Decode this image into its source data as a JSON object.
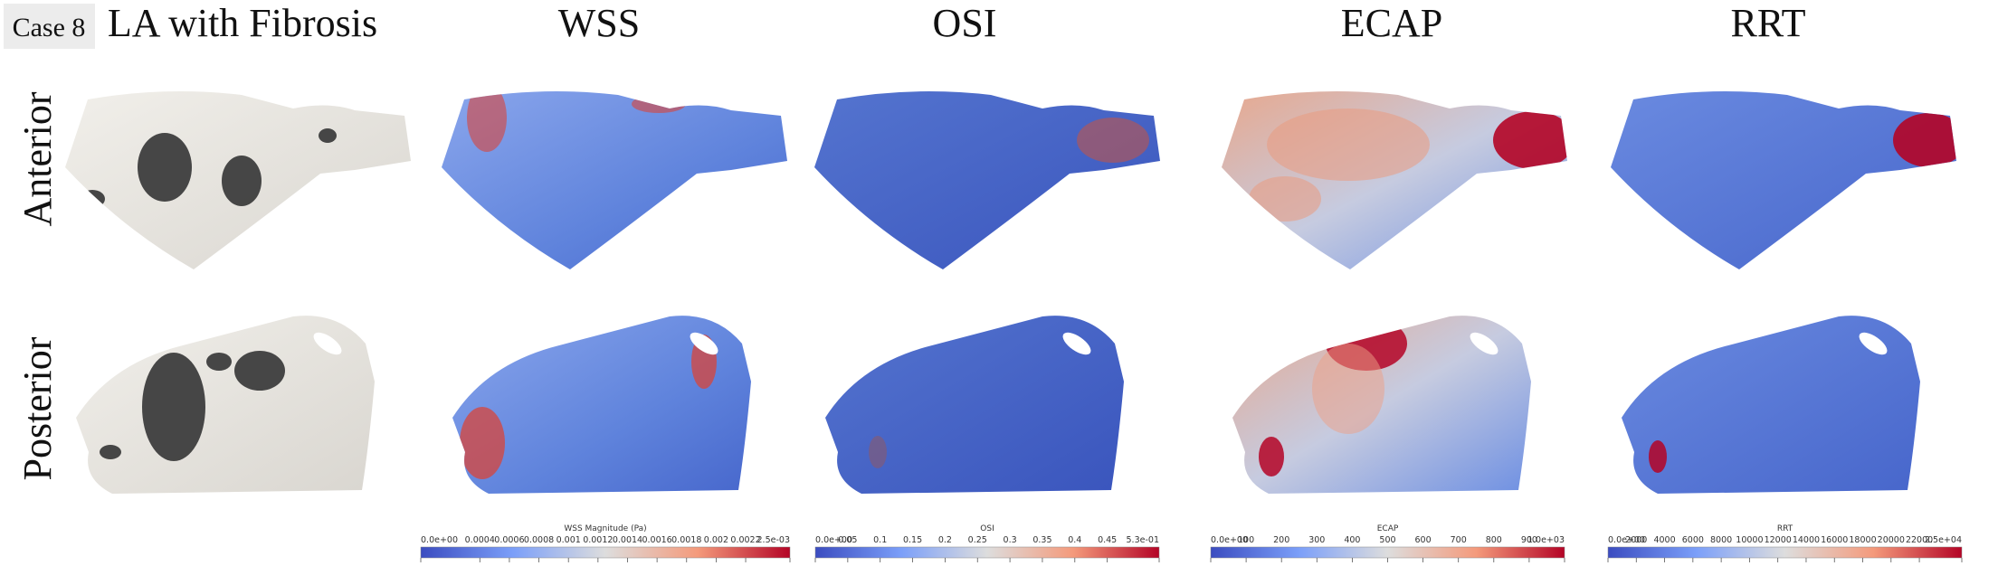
{
  "header": {
    "case": "Case 8",
    "columns": [
      "LA with Fibrosis",
      "WSS",
      "OSI",
      "ECAP",
      "RRT"
    ]
  },
  "rows": [
    "Anterior",
    "Posterior"
  ],
  "colorbars": [
    {
      "title": "WSS Magnitude (Pa)",
      "lim": [
        0,
        0.0025
      ],
      "ticks": [
        {
          "value": 0,
          "label": "0.0e+00"
        },
        0.0004,
        0.0006,
        0.0008,
        0.001,
        0.0012,
        0.0014,
        0.0016,
        0.0018,
        0.002,
        0.0022,
        {
          "value": 0.0025,
          "label": "2.5e-03"
        }
      ]
    },
    {
      "title": "OSI",
      "lim": [
        0,
        0.53
      ],
      "ticks": [
        {
          "value": 0,
          "label": "0.0e+00"
        },
        0.05,
        0.1,
        0.15,
        0.2,
        0.25,
        0.3,
        0.35,
        0.4,
        0.45,
        {
          "value": 0.53,
          "label": "5.3e-01"
        }
      ]
    },
    {
      "title": "ECAP",
      "lim": [
        0,
        1000
      ],
      "ticks": [
        {
          "value": 0,
          "label": "0.0e+00"
        },
        100,
        200,
        300,
        400,
        500,
        600,
        700,
        800,
        900,
        {
          "value": 1000,
          "label": "1.0e+03"
        }
      ]
    },
    {
      "title": "RRT",
      "lim": [
        0,
        25000
      ],
      "ticks": [
        {
          "value": 0,
          "label": "0.0e+00"
        },
        2000,
        4000,
        6000,
        8000,
        10000,
        12000,
        14000,
        16000,
        18000,
        20000,
        22000,
        {
          "value": 25000,
          "label": "2.5e+04"
        }
      ]
    }
  ]
}
